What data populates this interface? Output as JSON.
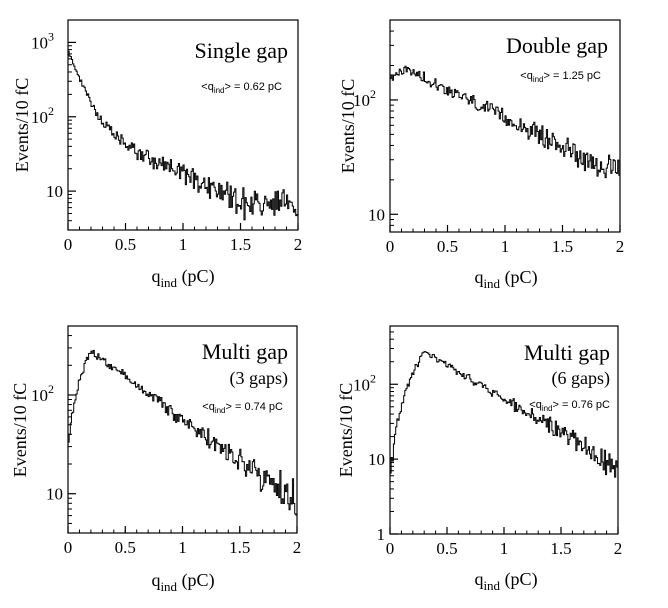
{
  "chart_data": [
    {
      "type": "line",
      "title": "Single gap",
      "subtitle": null,
      "mean": {
        "prefix": "<q",
        "sub": "ind",
        "suffix": "> = 0.62 pC"
      },
      "xlabel": {
        "main": "q",
        "sub": "ind",
        "unit": " (pC)"
      },
      "ylabel": "Events/10 fC",
      "xlim": [
        0,
        2
      ],
      "ylim": [
        3,
        2000
      ],
      "yscale": "log",
      "xticks": [
        0,
        0.5,
        1,
        1.5,
        2
      ],
      "xtick_labels": [
        "0",
        "0.5",
        "1",
        "1.5",
        "2"
      ],
      "yticks": [
        10,
        100,
        1000
      ],
      "ytick_labels": [
        {
          "base": "10",
          "exp": ""
        },
        {
          "base": "10",
          "exp": "2"
        },
        {
          "base": "10",
          "exp": "3"
        }
      ],
      "shape": {
        "peak": 0.0,
        "peak_value": 1000,
        "decay_slow": 1.6,
        "decay_fast": 10,
        "fast_fraction": 0.7,
        "end_value": 6
      },
      "series": [
        {
          "values": []
        }
      ]
    },
    {
      "type": "line",
      "title": "Double gap",
      "subtitle": null,
      "mean": {
        "prefix": "<q",
        "sub": "ind",
        "suffix": "> = 1.25 pC"
      },
      "xlabel": {
        "main": "q",
        "sub": "ind",
        "unit": " (pC)"
      },
      "ylabel": "Events/10 fC",
      "xlim": [
        0,
        2
      ],
      "ylim": [
        7,
        500
      ],
      "yscale": "log",
      "xticks": [
        0,
        0.5,
        1,
        1.5,
        2
      ],
      "xtick_labels": [
        "0",
        "0.5",
        "1",
        "1.5",
        "2"
      ],
      "yticks": [
        10,
        100
      ],
      "ytick_labels": [
        {
          "base": "10",
          "exp": ""
        },
        {
          "base": "10",
          "exp": "2"
        }
      ],
      "shape": {
        "peak": 0.15,
        "peak_value": 185,
        "rise_start_value": 140,
        "end_value": 22
      },
      "series": [
        {
          "values": []
        }
      ]
    },
    {
      "type": "line",
      "title": "Multi gap",
      "subtitle": "(3 gaps)",
      "mean": {
        "prefix": "<q",
        "sub": "ind",
        "suffix": "> = 0.74 pC"
      },
      "xlabel": {
        "main": "q",
        "sub": "ind",
        "unit": " (pC)"
      },
      "ylabel": "Events/10 fC",
      "xlim": [
        0,
        2
      ],
      "ylim": [
        4,
        500
      ],
      "yscale": "log",
      "xticks": [
        0,
        0.5,
        1,
        1.5,
        2
      ],
      "xtick_labels": [
        "0",
        "0.5",
        "1",
        "1.5",
        "2"
      ],
      "yticks": [
        10,
        100
      ],
      "ytick_labels": [
        {
          "base": "10",
          "exp": ""
        },
        {
          "base": "10",
          "exp": "2"
        }
      ],
      "shape": {
        "peak": 0.2,
        "peak_value": 280,
        "rise_start_value": 20,
        "end_value": 8
      },
      "series": [
        {
          "values": []
        }
      ]
    },
    {
      "type": "line",
      "title": "Multi gap",
      "subtitle": "(6 gaps)",
      "mean": {
        "prefix": "<q",
        "sub": "ind",
        "suffix": "> = 0.76 pC"
      },
      "xlabel": {
        "main": "q",
        "sub": "ind",
        "unit": " (pC)"
      },
      "ylabel": "Events/10 fC",
      "xlim": [
        0,
        2
      ],
      "ylim": [
        1,
        600
      ],
      "yscale": "log",
      "xticks": [
        0,
        0.5,
        1,
        1.5,
        2
      ],
      "xtick_labels": [
        "0",
        "0.5",
        "1",
        "1.5",
        "2"
      ],
      "yticks": [
        1,
        10,
        100
      ],
      "ytick_labels": [
        {
          "base": "1",
          "exp": ""
        },
        {
          "base": "10",
          "exp": ""
        },
        {
          "base": "10",
          "exp": "2"
        }
      ],
      "shape": {
        "peak": 0.3,
        "peak_value": 270,
        "rise_start_value": 1.5,
        "end_value": 8
      },
      "series": [
        {
          "values": []
        }
      ]
    }
  ]
}
